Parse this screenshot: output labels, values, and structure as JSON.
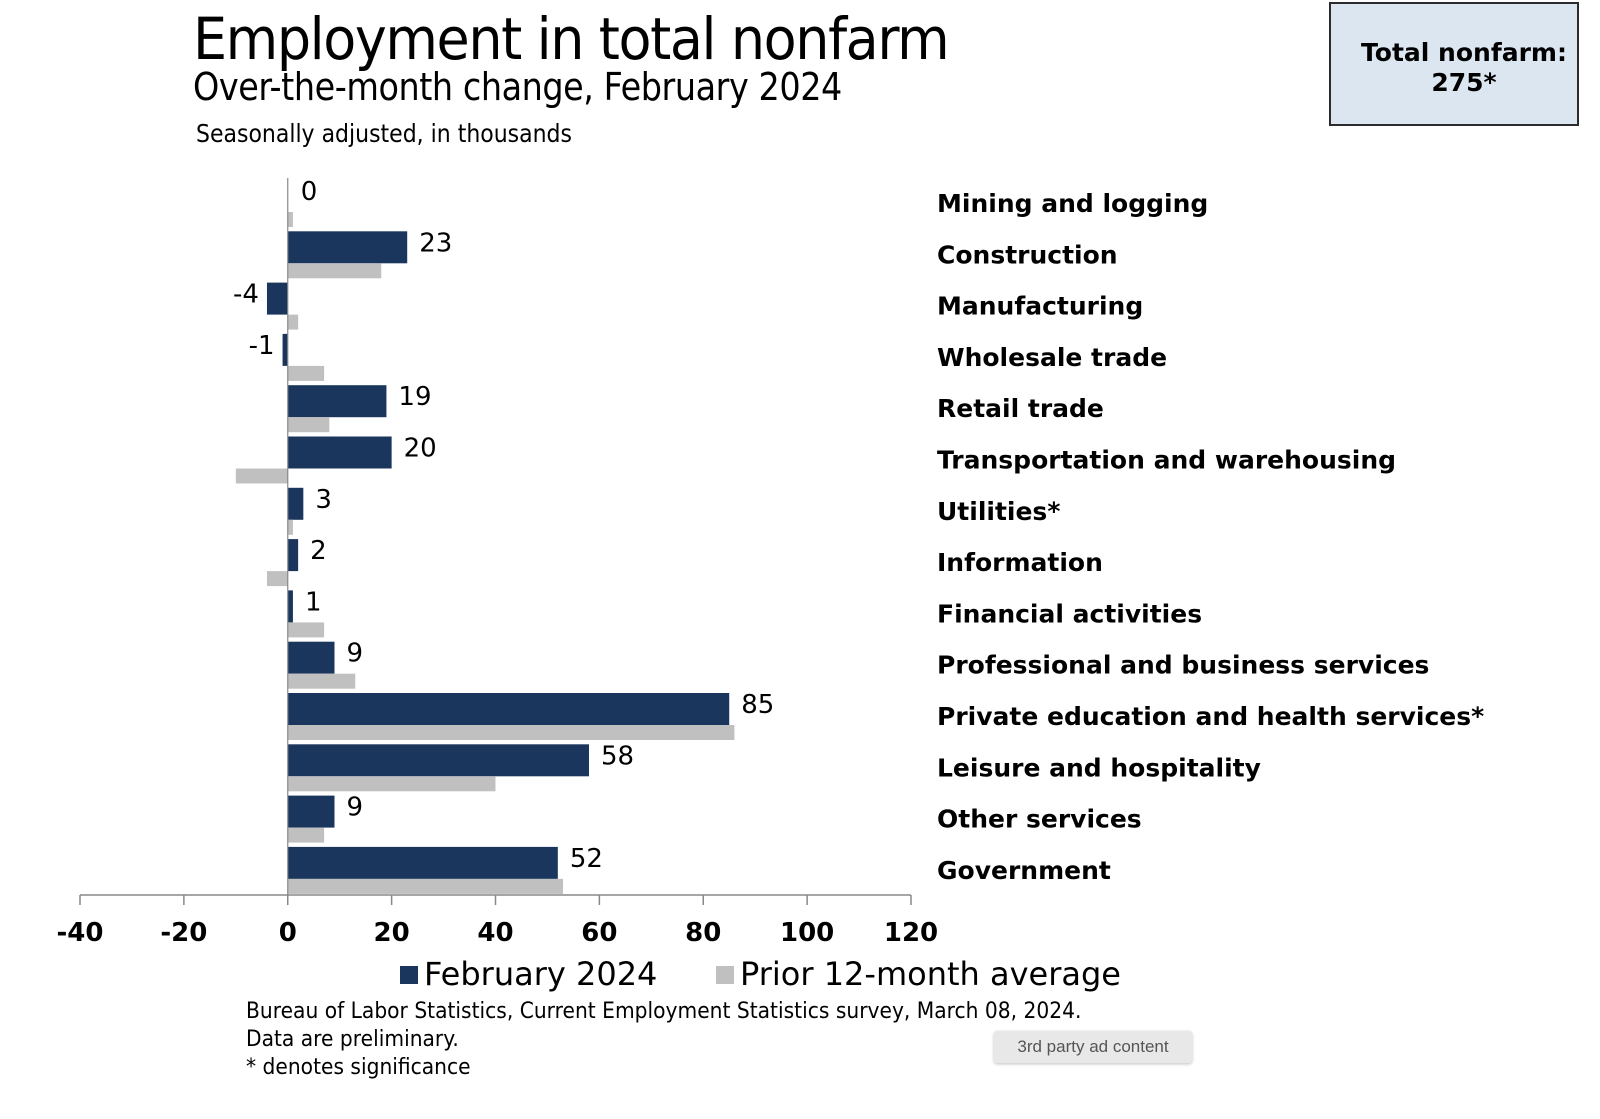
{
  "header": {
    "title": "Employment in total nonfarm",
    "subtitle": "Over-the-month change, February 2024",
    "units": "Seasonally adjusted, in thousands"
  },
  "total_box": {
    "label": "Total nonfarm:",
    "value": "275*",
    "background": "#dce6f1"
  },
  "chart_data": {
    "type": "bar",
    "orientation": "horizontal",
    "title": "Employment in total nonfarm",
    "subtitle": "Over-the-month change, February 2024",
    "xlabel": "",
    "ylabel": "Seasonally adjusted, in thousands",
    "xlim": [
      -40,
      120
    ],
    "xticks": [
      -40,
      -20,
      0,
      20,
      40,
      60,
      80,
      100,
      120
    ],
    "xtick_labels": [
      "-40",
      "-20",
      "0",
      "20",
      "40",
      "60",
      "80",
      "100",
      "120"
    ],
    "grid": false,
    "legend_position": "bottom",
    "categories": [
      "Mining and logging",
      "Construction",
      "Manufacturing",
      "Wholesale trade",
      "Retail trade",
      "Transportation and warehousing",
      "Utilities*",
      "Information",
      "Financial activities",
      "Professional and business services",
      "Private education and health services*",
      "Leisure and hospitality",
      "Other services",
      "Government"
    ],
    "series": [
      {
        "name": "February 2024",
        "color": "#1b365d",
        "values": [
          0,
          23,
          -4,
          -1,
          19,
          20,
          3,
          2,
          1,
          9,
          85,
          58,
          9,
          52
        ],
        "labels": [
          "0",
          "23",
          "-4",
          "-1",
          "19",
          "20",
          "3",
          "2",
          "1",
          "9",
          "85",
          "58",
          "9",
          "52"
        ]
      },
      {
        "name": "Prior 12-month average",
        "color": "#c0c0c0",
        "values": [
          1,
          18,
          2,
          7,
          8,
          -10,
          1,
          -4,
          7,
          13,
          86,
          40,
          7,
          53
        ]
      }
    ]
  },
  "footer": {
    "source": "Bureau of Labor Statistics, Current Employment Statistics survey, March 08, 2024.",
    "note1": "Data are preliminary.",
    "note2": "* denotes significance"
  },
  "overlay": {
    "ad_label": "3rd party ad content"
  }
}
